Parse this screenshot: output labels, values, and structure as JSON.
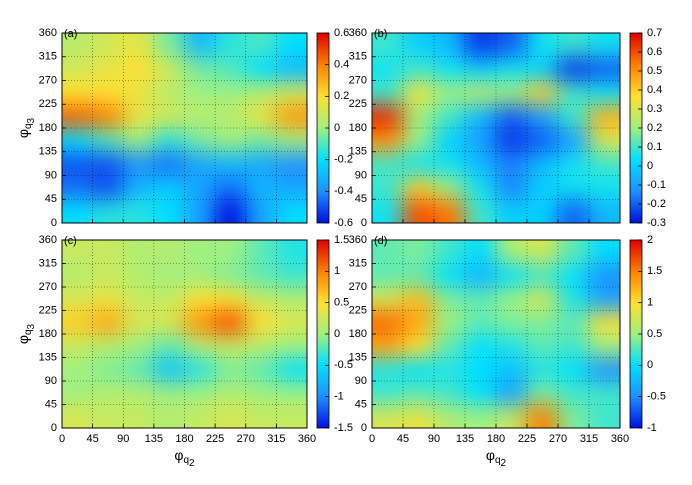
{
  "chart_data": [
    {
      "type": "heatmap",
      "panel_label": "(a)",
      "x": [
        22.5,
        67.5,
        112.5,
        157.5,
        202.5,
        247.5,
        292.5,
        337.5
      ],
      "y": [
        22.5,
        67.5,
        112.5,
        157.5,
        202.5,
        247.5,
        292.5,
        337.5
      ],
      "z": [
        [
          -0.2,
          -0.15,
          -0.15,
          -0.2,
          -0.35,
          -0.6,
          -0.35,
          -0.2
        ],
        [
          -0.45,
          -0.5,
          -0.3,
          -0.25,
          -0.35,
          -0.45,
          -0.3,
          -0.35
        ],
        [
          -0.5,
          -0.5,
          -0.4,
          -0.45,
          -0.35,
          -0.3,
          -0.35,
          -0.4
        ],
        [
          -0.2,
          -0.1,
          0,
          -0.15,
          -0.05,
          0,
          -0.05,
          0
        ],
        [
          0.45,
          0.4,
          0.15,
          0.1,
          0.05,
          0.05,
          0.15,
          0.35
        ],
        [
          0.2,
          0.2,
          0.15,
          0.05,
          0,
          0,
          0.05,
          0.1
        ],
        [
          0.1,
          0.15,
          0.2,
          0.1,
          -0.05,
          -0.1,
          -0.2,
          -0.3
        ],
        [
          0.05,
          0.1,
          0.15,
          -0.05,
          -0.3,
          -0.15,
          -0.1,
          -0.2
        ]
      ],
      "xlim": [
        0,
        360
      ],
      "ylim": [
        0,
        360
      ],
      "xticks": [
        0,
        45,
        90,
        135,
        180,
        225,
        270,
        315,
        360
      ],
      "show_xtick_labels": false,
      "yticks": [
        0,
        45,
        90,
        135,
        180,
        225,
        270,
        315,
        360
      ],
      "ylabel": [
        "φ",
        "q",
        "3"
      ],
      "zlim": [
        -0.6,
        0.6
      ],
      "zticks": [
        -0.6,
        -0.4,
        -0.2,
        0,
        0.2,
        0.4,
        0.6
      ],
      "colormap": [
        "#0010e0",
        "#1e90ff",
        "#00e0ff",
        "#a0f080",
        "#ffe030",
        "#ff8000",
        "#e00000"
      ],
      "grid": true
    },
    {
      "type": "heatmap",
      "panel_label": "(b)",
      "x": [
        22.5,
        67.5,
        112.5,
        157.5,
        202.5,
        247.5,
        292.5,
        337.5
      ],
      "y": [
        22.5,
        67.5,
        112.5,
        157.5,
        202.5,
        247.5,
        292.5,
        337.5
      ],
      "z": [
        [
          0.05,
          0.6,
          0.55,
          0.1,
          0,
          0,
          -0.2,
          -0.05
        ],
        [
          0.1,
          0.4,
          0.2,
          0.05,
          -0.15,
          0,
          0.05,
          0.05
        ],
        [
          0.1,
          0.05,
          0.05,
          -0.05,
          -0.15,
          -0.05,
          0.05,
          0.1
        ],
        [
          0.5,
          0.2,
          0,
          -0.1,
          -0.25,
          -0.2,
          -0.1,
          0.3
        ],
        [
          0.65,
          0.2,
          0.1,
          -0.05,
          -0.2,
          -0.1,
          0.1,
          0.45
        ],
        [
          0.1,
          0.35,
          0.2,
          0.25,
          0.2,
          0.4,
          0.1,
          0.05
        ],
        [
          0.05,
          0.1,
          0.05,
          0,
          0.05,
          0,
          -0.25,
          -0.2
        ],
        [
          0.1,
          0,
          -0.05,
          -0.25,
          -0.2,
          0.05,
          0.1,
          0.05
        ]
      ],
      "xlim": [
        0,
        360
      ],
      "ylim": [
        0,
        360
      ],
      "xticks": [
        0,
        45,
        90,
        135,
        180,
        225,
        270,
        315,
        360
      ],
      "show_xtick_labels": false,
      "yticks": [
        0,
        45,
        90,
        135,
        180,
        225,
        270,
        315,
        360
      ],
      "zlim": [
        -0.3,
        0.7
      ],
      "zticks": [
        -0.3,
        -0.2,
        -0.1,
        0,
        0.1,
        0.2,
        0.3,
        0.4,
        0.5,
        0.6,
        0.7
      ],
      "colormap": [
        "#0010e0",
        "#1e90ff",
        "#00e0ff",
        "#a0f080",
        "#ffe030",
        "#ff8000",
        "#e00000"
      ],
      "grid": true
    },
    {
      "type": "heatmap",
      "panel_label": "(c)",
      "x": [
        22.5,
        67.5,
        112.5,
        157.5,
        202.5,
        247.5,
        292.5,
        337.5
      ],
      "y": [
        22.5,
        67.5,
        112.5,
        157.5,
        202.5,
        247.5,
        292.5,
        337.5
      ],
      "z": [
        [
          0.3,
          0.2,
          0.2,
          0.1,
          0.2,
          0.3,
          0.2,
          0.2
        ],
        [
          0,
          0.1,
          0.1,
          0,
          0,
          0.1,
          0,
          0
        ],
        [
          0,
          -0.1,
          -0.2,
          -0.7,
          -0.4,
          -0.1,
          -0.2,
          -0.5
        ],
        [
          0.2,
          0.1,
          0,
          -0.2,
          0.1,
          0.2,
          0.1,
          0
        ],
        [
          0.6,
          0.8,
          0.3,
          0.3,
          0.9,
          1.2,
          0.5,
          0.3
        ],
        [
          0.3,
          0.4,
          0.2,
          0.2,
          0.5,
          0.5,
          0.2,
          0.1
        ],
        [
          0.1,
          0.2,
          0.1,
          0,
          0,
          -0.1,
          -0.2,
          -0.3
        ],
        [
          0.2,
          0.2,
          0.1,
          0.1,
          0,
          0,
          -0.2,
          -0.4
        ]
      ],
      "xlim": [
        0,
        360
      ],
      "ylim": [
        0,
        360
      ],
      "xticks": [
        0,
        45,
        90,
        135,
        180,
        225,
        270,
        315,
        360
      ],
      "show_xtick_labels": true,
      "yticks": [
        0,
        45,
        90,
        135,
        180,
        225,
        270,
        315,
        360
      ],
      "xlabel": [
        "φ",
        "q",
        "2"
      ],
      "ylabel": [
        "φ",
        "q",
        "3"
      ],
      "zlim": [
        -1.5,
        1.5
      ],
      "zticks": [
        -1.5,
        -1,
        -0.5,
        0,
        0.5,
        1,
        1.5
      ],
      "colormap": [
        "#0010e0",
        "#1e90ff",
        "#00e0ff",
        "#a0f080",
        "#ffe030",
        "#ff8000",
        "#e00000"
      ],
      "grid": true
    },
    {
      "type": "heatmap",
      "panel_label": "(d)",
      "x": [
        22.5,
        67.5,
        112.5,
        157.5,
        202.5,
        247.5,
        292.5,
        337.5
      ],
      "y": [
        22.5,
        67.5,
        112.5,
        157.5,
        202.5,
        247.5,
        292.5,
        337.5
      ],
      "z": [
        [
          0.8,
          0.9,
          0.6,
          0.5,
          0.7,
          1.5,
          0.4,
          0.2
        ],
        [
          0.2,
          0.3,
          0.2,
          0,
          -0.4,
          0.4,
          0.2,
          0.2
        ],
        [
          0.1,
          0,
          0.1,
          0,
          -0.2,
          0.1,
          0,
          -0.5
        ],
        [
          1.3,
          1.0,
          0.3,
          0,
          0.1,
          0.3,
          0.2,
          0.5
        ],
        [
          1.6,
          1.3,
          0.5,
          0.3,
          0.4,
          0.4,
          0.3,
          1.0
        ],
        [
          0.8,
          1.2,
          0.4,
          0.3,
          0.5,
          0.8,
          0.1,
          -0.4
        ],
        [
          0.3,
          0.3,
          0,
          -0.3,
          0,
          0.2,
          0,
          -0.5
        ],
        [
          0.3,
          0.4,
          0.2,
          0,
          0.6,
          0.8,
          0.3,
          0
        ]
      ],
      "xlim": [
        0,
        360
      ],
      "ylim": [
        0,
        360
      ],
      "xticks": [
        0,
        45,
        90,
        135,
        180,
        225,
        270,
        315,
        360
      ],
      "show_xtick_labels": true,
      "yticks": [
        0,
        45,
        90,
        135,
        180,
        225,
        270,
        315,
        360
      ],
      "xlabel": [
        "φ",
        "q",
        "2"
      ],
      "zlim": [
        -1,
        2
      ],
      "zticks": [
        -1,
        -0.5,
        0,
        0.5,
        1,
        1.5,
        2
      ],
      "colormap": [
        "#0010e0",
        "#1e90ff",
        "#00e0ff",
        "#a0f080",
        "#ffe030",
        "#ff8000",
        "#e00000"
      ],
      "grid": true
    }
  ]
}
